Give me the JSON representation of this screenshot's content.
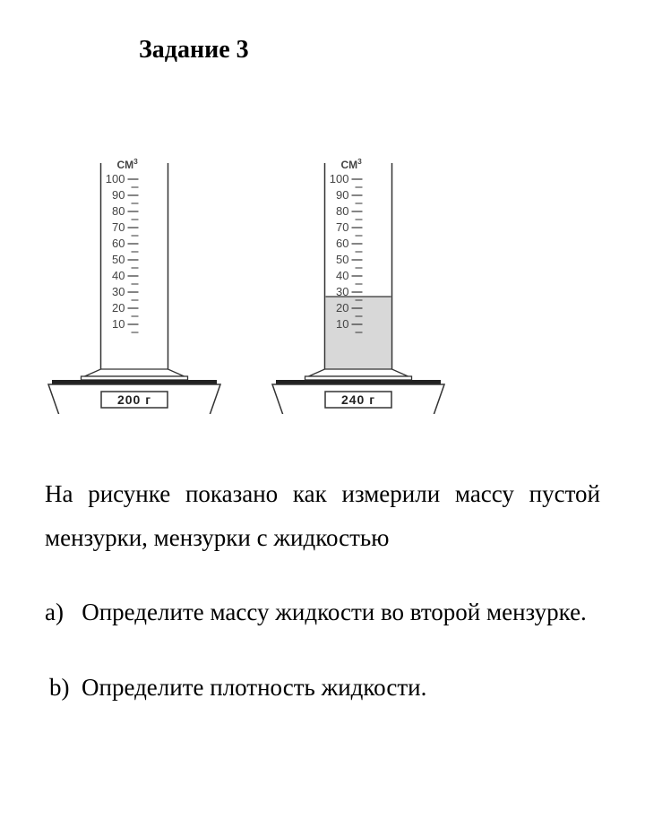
{
  "title": "Задание 3",
  "problem_text": "На рисунке показано как измерили массу пустой мензурки, мензурки с жидкостью",
  "question_a": "a)   Определите массу жидкости во второй мензурке.",
  "question_b": "b)  Определите плотность жидкости.",
  "cylinders": {
    "unit_label": "CM",
    "unit_superscript": "3",
    "scale_labels": [
      "100",
      "90",
      "80",
      "70",
      "60",
      "50",
      "40",
      "30",
      "20",
      "10"
    ],
    "left": {
      "mass_label": "200 г",
      "liquid_level": 0,
      "filled": false
    },
    "right": {
      "mass_label": "240 г",
      "liquid_level": 40,
      "filled": true
    },
    "style": {
      "cylinder_width": 75,
      "cylinder_height": 230,
      "tick_spacing": 18,
      "stroke_color": "#333333",
      "text_color": "#444444",
      "fill_color": "#d8d8d8",
      "scale_fontsize": 13,
      "unit_fontsize": 12,
      "mass_fontsize": 14,
      "base_width": 200,
      "base_height": 45
    }
  }
}
